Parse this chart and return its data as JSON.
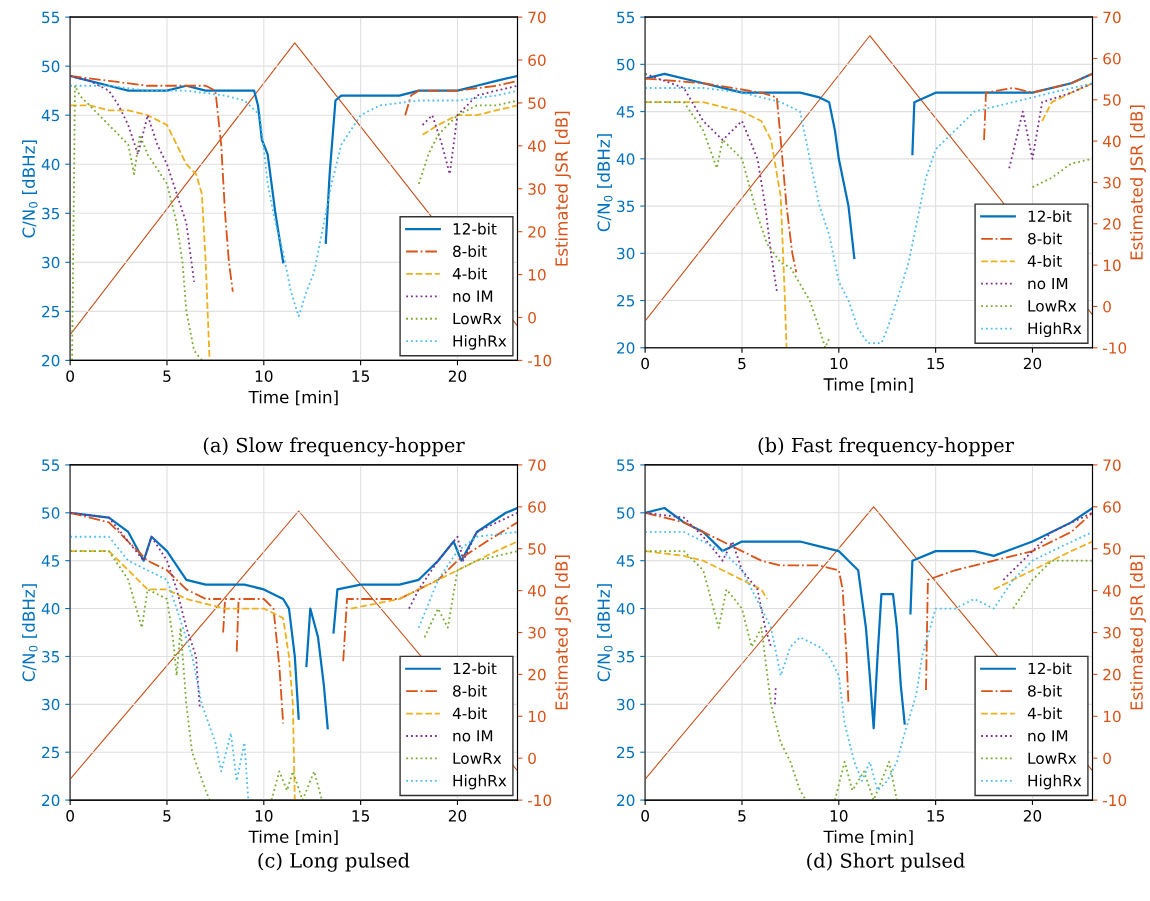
{
  "chart_data": [
    {
      "type": "line",
      "xlabel": "Time [min]",
      "ylabel": "C/N$_{0}$ [dBHz]",
      "y2label": "Estimated JSR [dB]",
      "annotations": [
        "(a) Slow frequency-hopper"
      ],
      "xlim": [
        0,
        23.1
      ],
      "xticks": [
        0,
        5,
        10,
        15,
        20
      ],
      "ylim": [
        20,
        55
      ],
      "yticks": [
        20,
        25,
        30,
        35,
        40,
        45,
        50,
        55
      ],
      "y2lim": [
        -10,
        70
      ],
      "y2ticks": [
        -10,
        0,
        10,
        20,
        30,
        40,
        50,
        60,
        70
      ],
      "grid": true,
      "legend": "bottom right",
      "marker": "none",
      "series": [
        {
          "name": "12-bit",
          "color": "#0072bd",
          "line_style": "solid",
          "x": [
            0,
            1,
            2,
            3,
            4,
            5,
            6,
            7,
            8,
            9,
            9.5,
            9.7,
            9.9,
            10.2,
            10.6,
            11.0,
            11.1,
            13.2,
            13.4,
            13.7,
            14,
            15,
            16,
            17,
            18,
            19,
            20,
            21,
            22,
            23.1
          ],
          "values": [
            49,
            48.5,
            48,
            47.5,
            47.5,
            47.5,
            48,
            47.5,
            47.5,
            47.5,
            47.5,
            46,
            42.5,
            41,
            35,
            30,
            null,
            32,
            39,
            46.5,
            47,
            47,
            47,
            47,
            47.5,
            47.5,
            47.5,
            48,
            48.5,
            49
          ]
        },
        {
          "name": "8-bit",
          "color": "#d95319",
          "line_style": "dashdot",
          "x": [
            0,
            2,
            4,
            6,
            7,
            7.5,
            7.8,
            8.0,
            8.2,
            8.4,
            8.5,
            17.3,
            17.6,
            18,
            20,
            22,
            23.1
          ],
          "values": [
            49,
            48.5,
            48,
            48,
            48,
            47.5,
            42,
            35,
            30,
            27,
            null,
            45,
            47,
            47.5,
            47.5,
            48,
            48.5
          ]
        },
        {
          "name": "4-bit",
          "color": "#edb120",
          "line_style": "dashed",
          "x": [
            0,
            1,
            2,
            3,
            4,
            5,
            5.5,
            6,
            6.5,
            6.8,
            7.0,
            7.2,
            7.3,
            18.2,
            19,
            20,
            21,
            22,
            23.1
          ],
          "values": [
            46,
            46,
            45.5,
            45.5,
            45,
            44,
            42,
            40,
            39,
            37,
            30,
            20,
            null,
            43,
            44,
            45,
            45,
            45.5,
            46
          ]
        },
        {
          "name": "no IM",
          "color": "#7e2f8e",
          "line_style": "dotted",
          "x": [
            0,
            1,
            2,
            2.5,
            3,
            3.5,
            4,
            4.5,
            5,
            5.5,
            6,
            6.4,
            6.5,
            18.2,
            18.7,
            19.2,
            19.6,
            20,
            21,
            22,
            23.1
          ],
          "values": [
            49,
            48.5,
            47.5,
            46,
            44,
            41,
            45,
            42,
            40,
            37,
            34,
            28,
            null,
            44,
            45,
            42,
            39,
            45,
            47,
            47.5,
            48
          ]
        },
        {
          "name": "LowRx",
          "color": "#77ac30",
          "line_style": "dotted",
          "x": [
            0.1,
            0.25,
            0.5,
            1,
            2,
            3,
            3.3,
            3.6,
            4,
            5,
            5.5,
            5.8,
            6,
            6.4,
            6.8,
            6.9,
            17.8,
            18,
            18.5,
            19,
            20,
            21,
            22,
            23.1
          ],
          "values": [
            20,
            48,
            47,
            46,
            44,
            42,
            39,
            43,
            41,
            38,
            34,
            30,
            25,
            21,
            20,
            null,
            null,
            38,
            41,
            43,
            45,
            46,
            46,
            46.5
          ]
        },
        {
          "name": "HighRx",
          "color": "#4dbeee",
          "line_style": "dotted",
          "x": [
            0,
            2,
            4,
            6,
            8,
            9,
            9.8,
            10.2,
            10.6,
            11,
            11.4,
            11.8,
            12.2,
            12.6,
            13,
            13.5,
            14,
            15,
            16,
            18,
            20,
            22,
            23.1
          ],
          "values": [
            48,
            48,
            47.5,
            47.5,
            47,
            46.5,
            45,
            38,
            34,
            31,
            27,
            24.5,
            27,
            29,
            33,
            38,
            42,
            45,
            46,
            46.5,
            46.5,
            47,
            47.5
          ]
        },
        {
          "color": "#c8501a",
          "line_style": "solid",
          "axis": "y2",
          "x": [
            0,
            11.6,
            23.1
          ],
          "values": [
            -4,
            64,
            -2
          ]
        }
      ]
    },
    {
      "type": "line",
      "xlabel": "Time [min]",
      "ylabel": "C/N$_{0}$ [dBHz]",
      "y2label": "Estimated JSR [dB]",
      "annotations": [
        "(b) Fast frequency-hopper"
      ],
      "xlim": [
        0,
        23.1
      ],
      "xticks": [
        0,
        5,
        10,
        15,
        20
      ],
      "ylim": [
        20,
        55
      ],
      "yticks": [
        20,
        25,
        30,
        35,
        40,
        45,
        50,
        55
      ],
      "y2lim": [
        -10,
        70
      ],
      "y2ticks": [
        -10,
        0,
        10,
        20,
        30,
        40,
        50,
        60,
        70
      ],
      "grid": true,
      "legend": "bottom right",
      "marker": "none",
      "series": [
        {
          "name": "12-bit",
          "color": "#0072bd",
          "line_style": "solid",
          "x": [
            0,
            1,
            3,
            5,
            8,
            9,
            9.5,
            9.8,
            10,
            10.5,
            10.8,
            10.9,
            13.8,
            13.9,
            15,
            20,
            22,
            23.1
          ],
          "values": [
            48.5,
            49,
            48,
            47,
            47,
            46.5,
            46,
            43,
            40,
            35,
            29.5,
            null,
            40.5,
            46,
            47,
            47,
            48,
            49
          ]
        },
        {
          "name": "8-bit",
          "color": "#d95319",
          "line_style": "dashdot",
          "x": [
            0,
            3,
            4.5,
            6,
            6.8,
            7,
            7.3,
            7.6,
            7.8,
            7.9,
            17.5,
            17.6,
            19,
            20,
            22,
            23.1
          ],
          "values": [
            48.5,
            48,
            47.5,
            47,
            46.5,
            42,
            35,
            30,
            28,
            null,
            42,
            47,
            47.5,
            47,
            48,
            49
          ]
        },
        {
          "name": "4-bit",
          "color": "#edb120",
          "line_style": "dashed",
          "x": [
            0,
            3,
            5,
            6,
            6.5,
            7,
            7.2,
            7.3,
            7.4,
            20.5,
            21,
            22,
            23.1
          ],
          "values": [
            46,
            46,
            45,
            44,
            42,
            36,
            26,
            20,
            null,
            44,
            46,
            47,
            48
          ]
        },
        {
          "name": "no IM",
          "color": "#7e2f8e",
          "line_style": "dotted",
          "x": [
            0,
            2,
            3,
            4,
            5,
            5.8,
            6.2,
            6.5,
            6.8,
            6.9,
            18.8,
            19.5,
            20,
            20.5,
            22,
            23.1
          ],
          "values": [
            49,
            47.5,
            44,
            42,
            44,
            40,
            35,
            30,
            26,
            null,
            39,
            45,
            40,
            46,
            47,
            48
          ]
        },
        {
          "name": "LowRx",
          "color": "#77ac30",
          "line_style": "dotted",
          "x": [
            0,
            2,
            3,
            3.7,
            4,
            5,
            5.8,
            6.3,
            7,
            7.5,
            8.5,
            9,
            9.3,
            9.5,
            9.6,
            18,
            18.5,
            20,
            21,
            22,
            23.1
          ],
          "values": [
            46,
            46,
            43,
            39,
            42,
            40,
            34,
            31,
            29,
            28.5,
            25,
            22,
            20,
            21,
            null,
            null,
            null,
            37,
            38,
            39.5,
            40
          ]
        },
        {
          "name": "HighRx",
          "color": "#4dbeee",
          "line_style": "dotted",
          "x": [
            0,
            3,
            5,
            7,
            8,
            8.5,
            9,
            9.5,
            10,
            10.5,
            11,
            11.5,
            12.2,
            12.5,
            13,
            13.6,
            14,
            14.5,
            15,
            16,
            17,
            19,
            21,
            23.1
          ],
          "values": [
            47.5,
            47.5,
            47,
            46,
            45,
            40,
            35,
            32,
            27,
            25,
            22,
            20.5,
            20.5,
            22,
            25,
            29,
            33,
            38,
            41,
            43,
            45,
            46,
            47,
            48
          ]
        },
        {
          "color": "#c8501a",
          "line_style": "solid",
          "axis": "y2",
          "x": [
            0,
            11.6,
            23.1
          ],
          "values": [
            -3.5,
            65.5,
            -2
          ]
        }
      ]
    },
    {
      "type": "line",
      "xlabel": "Time [min]",
      "ylabel": "C/N$_{0}$ [dBHz]",
      "y2label": "Estimated JSR [dB]",
      "annotations": [
        "(c) Long pulsed"
      ],
      "xlim": [
        0,
        23.1
      ],
      "xticks": [
        0,
        5,
        10,
        15,
        20
      ],
      "ylim": [
        20,
        55
      ],
      "yticks": [
        20,
        25,
        30,
        35,
        40,
        45,
        50,
        55
      ],
      "y2lim": [
        -10,
        70
      ],
      "y2ticks": [
        -10,
        0,
        10,
        20,
        30,
        40,
        50,
        60,
        70
      ],
      "grid": true,
      "legend": "bottom right",
      "marker": "none",
      "series": [
        {
          "name": "12-bit",
          "color": "#0072bd",
          "line_style": "solid",
          "x": [
            0,
            2,
            3,
            3.8,
            4.2,
            5,
            6,
            7,
            9,
            10,
            11,
            11.3,
            11.6,
            11.8,
            11.9,
            12.2,
            12.4,
            12.8,
            13.1,
            13.3,
            13.4,
            13.6,
            13.8,
            15,
            17,
            18,
            19,
            19.8,
            20.2,
            21,
            22.5,
            23.1
          ],
          "values": [
            50,
            49.5,
            48,
            45,
            47.5,
            46,
            43,
            42.5,
            42.5,
            42,
            41,
            40,
            35,
            28.5,
            null,
            34,
            40,
            37,
            32,
            27.5,
            null,
            37.5,
            42,
            42.5,
            42.5,
            43,
            45,
            47,
            45,
            48,
            50,
            50.5
          ]
        },
        {
          "name": "8-bit",
          "color": "#d95319",
          "line_style": "dashdot",
          "x": [
            0,
            2,
            3,
            4,
            5,
            6,
            7,
            7.8,
            7.85,
            7.9,
            8.0,
            8.5,
            8.55,
            8.6,
            8.7,
            10,
            10.5,
            10.8,
            11,
            11.1,
            14.1,
            14.3,
            17,
            18,
            19,
            20,
            21.5,
            23.1
          ],
          "values": [
            50,
            49,
            47,
            45,
            44,
            42,
            41,
            41,
            null,
            37.5,
            41,
            41,
            null,
            35.5,
            41,
            41,
            40,
            34,
            28,
            null,
            34.5,
            41,
            41,
            42,
            43,
            45,
            47,
            49
          ]
        },
        {
          "name": "4-bit",
          "color": "#edb120",
          "line_style": "dashed",
          "x": [
            0,
            2,
            3,
            4,
            5,
            6,
            8,
            10,
            11,
            11.3,
            11.5,
            11.6,
            11.7,
            14.5,
            17,
            18,
            20,
            22,
            23.1
          ],
          "values": [
            46,
            46,
            44,
            42,
            42,
            41,
            40,
            40,
            39,
            35,
            30,
            20,
            null,
            40,
            41,
            42,
            44,
            46,
            47
          ]
        },
        {
          "name": "no IM",
          "color": "#7e2f8e",
          "line_style": "dotted",
          "x": [
            0,
            2,
            3,
            3.8,
            4.2,
            5,
            5.5,
            6,
            6.5,
            6.7,
            6.8,
            17.5,
            18,
            19,
            20,
            20.3,
            21,
            23.1
          ],
          "values": [
            50,
            49.5,
            47,
            45,
            47.5,
            45,
            42,
            38,
            35,
            29.5,
            null,
            40,
            42,
            45,
            47.5,
            45,
            48,
            50
          ]
        },
        {
          "name": "LowRx",
          "color": "#77ac30",
          "line_style": "dotted",
          "x": [
            0,
            2,
            3,
            3.7,
            4,
            5,
            5.3,
            5.5,
            5.7,
            6.0,
            6.3,
            7,
            7.2,
            7.3,
            10.4,
            10.8,
            11.2,
            11.5,
            12,
            12.6,
            13,
            13.1,
            17.7,
            18.3,
            19,
            19.5,
            20,
            21,
            23.1
          ],
          "values": [
            46,
            46,
            43,
            38,
            42,
            41,
            37,
            33,
            38,
            30,
            25,
            21,
            20,
            null,
            20,
            23,
            21,
            23,
            20,
            23,
            20,
            null,
            null,
            37,
            40,
            38,
            44,
            45,
            46
          ]
        },
        {
          "name": "HighRx",
          "color": "#4dbeee",
          "line_style": "dotted",
          "x": [
            0,
            2,
            3,
            4,
            5,
            5.5,
            6.3,
            6.8,
            7.5,
            7.8,
            8.3,
            8.6,
            9,
            9.2,
            9.3,
            17.4,
            18,
            19,
            20,
            21,
            23.1
          ],
          "values": [
            47.5,
            47.5,
            45,
            44,
            43,
            40,
            35,
            30,
            26,
            23,
            27,
            22,
            26,
            20,
            null,
            null,
            38,
            43,
            46,
            47.5,
            48
          ]
        },
        {
          "color": "#c8501a",
          "line_style": "solid",
          "axis": "y2",
          "x": [
            0,
            11.8,
            23.1
          ],
          "values": [
            -5,
            59,
            -3
          ]
        }
      ]
    },
    {
      "type": "line",
      "xlabel": "Time [min]",
      "ylabel": "C/N$_{0}$ [dBHz]",
      "y2label": "Estimated JSR [dB]",
      "annotations": [
        "(d) Short pulsed"
      ],
      "xlim": [
        0,
        23.1
      ],
      "xticks": [
        0,
        5,
        10,
        15,
        20
      ],
      "ylim": [
        20,
        55
      ],
      "yticks": [
        20,
        25,
        30,
        35,
        40,
        45,
        50,
        55
      ],
      "y2lim": [
        -10,
        70
      ],
      "y2ticks": [
        -10,
        0,
        10,
        20,
        30,
        40,
        50,
        60,
        70
      ],
      "grid": true,
      "legend": "bottom right",
      "marker": "none",
      "series": [
        {
          "name": "12-bit",
          "color": "#0072bd",
          "line_style": "solid",
          "x": [
            0,
            1,
            2,
            3,
            4,
            5,
            8,
            9,
            10,
            10.5,
            11,
            11.4,
            11.6,
            11.8,
            12,
            12.2,
            12.8,
            13,
            13.2,
            13.4,
            13.5,
            13.7,
            13.8,
            15,
            17,
            18,
            20,
            22,
            23.1
          ],
          "values": [
            50,
            50.5,
            49,
            48,
            46,
            47,
            47,
            46.5,
            46,
            45,
            44,
            38,
            33,
            27.5,
            35,
            41.5,
            41.5,
            38,
            32,
            28,
            null,
            39.5,
            45,
            46,
            46,
            45.5,
            47,
            49,
            50.5
          ]
        },
        {
          "name": "8-bit",
          "color": "#d95319",
          "line_style": "dashdot",
          "x": [
            0,
            2,
            4,
            5,
            6,
            7,
            9,
            10,
            10.2,
            10.4,
            10.5,
            10.6,
            14.5,
            14.6,
            16,
            18,
            20,
            22,
            23.1
          ],
          "values": [
            50,
            49,
            47,
            46,
            45,
            44.5,
            44.5,
            44,
            42,
            35,
            30,
            null,
            31.5,
            43,
            44,
            45,
            46,
            48,
            50
          ]
        },
        {
          "name": "4-bit",
          "color": "#edb120",
          "line_style": "dashed",
          "x": [
            0,
            2,
            3,
            4,
            5,
            6,
            6.3,
            6.4,
            18,
            20,
            22,
            23.1
          ],
          "values": [
            46,
            45.5,
            45,
            44,
            43,
            42,
            41,
            null,
            42,
            44,
            46,
            47
          ]
        },
        {
          "name": "no IM",
          "color": "#7e2f8e",
          "line_style": "dotted",
          "x": [
            0,
            2,
            3,
            4,
            4.5,
            5,
            5.8,
            6.2,
            6.5,
            6.6,
            6.7,
            6.75,
            6.8,
            18.5,
            20,
            21,
            23.1
          ],
          "values": [
            50,
            49.5,
            47.5,
            45,
            47,
            44,
            42,
            38,
            36,
            null,
            30,
            32,
            null,
            43,
            46,
            48,
            50
          ]
        },
        {
          "name": "LowRx",
          "color": "#77ac30",
          "line_style": "dotted",
          "x": [
            0,
            2,
            3,
            3.8,
            4.2,
            5,
            5.5,
            6,
            6.5,
            7,
            7.5,
            8,
            8.3,
            8.4,
            9.8,
            10.3,
            10.7,
            11.3,
            11.8,
            12.6,
            13,
            13.1,
            17.9,
            18.3,
            19,
            20,
            21,
            23.1
          ],
          "values": [
            46,
            46,
            44,
            38,
            42,
            40,
            36,
            38,
            30,
            26,
            24,
            21,
            20,
            null,
            20,
            24,
            21,
            23,
            20,
            24,
            20,
            null,
            null,
            null,
            40,
            43,
            45,
            45
          ]
        },
        {
          "name": "HighRx",
          "color": "#4dbeee",
          "line_style": "dotted",
          "x": [
            0,
            2,
            4,
            5,
            6,
            6.5,
            7,
            7.5,
            8,
            9,
            9.5,
            10,
            10.3,
            10.8,
            11.2,
            11.6,
            12,
            12.5,
            13,
            13.4,
            14,
            14.3,
            15,
            16,
            17,
            18,
            19,
            20,
            21,
            23.1
          ],
          "values": [
            48,
            48,
            46,
            44,
            40,
            38,
            33,
            36,
            37,
            36,
            35,
            33,
            28,
            24,
            22,
            24,
            21,
            22,
            24,
            27,
            31,
            35,
            40,
            40,
            41,
            40,
            43,
            45,
            46,
            48
          ]
        },
        {
          "color": "#c8501a",
          "line_style": "solid",
          "axis": "y2",
          "x": [
            0,
            11.8,
            23.1
          ],
          "values": [
            -5,
            60,
            -3
          ]
        }
      ]
    }
  ]
}
